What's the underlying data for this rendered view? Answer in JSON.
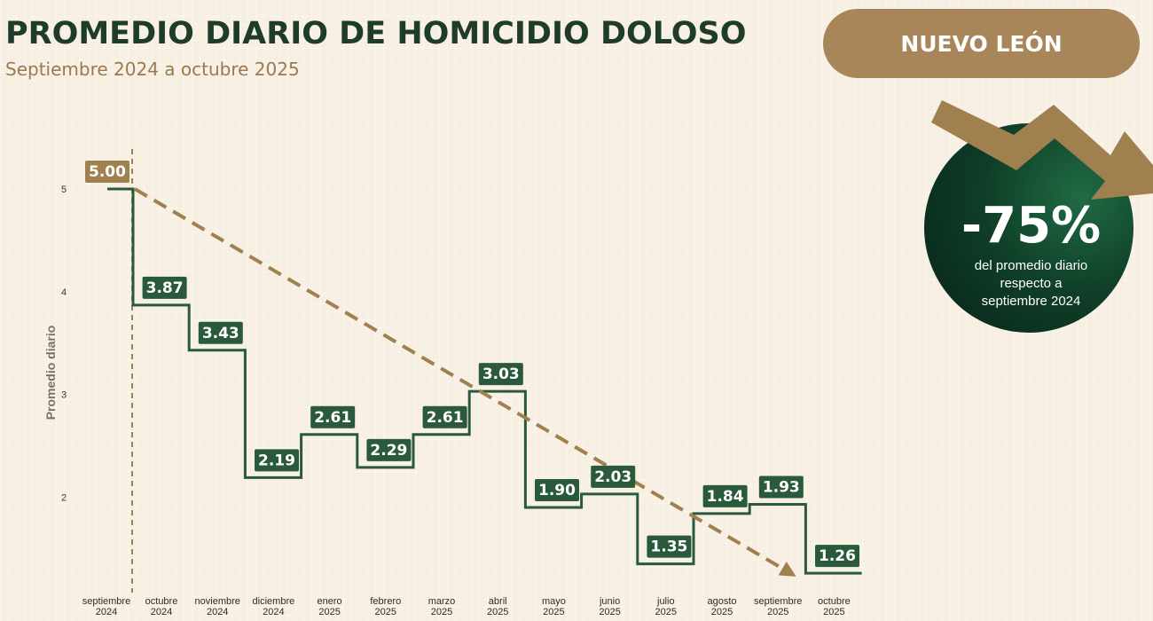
{
  "header": {
    "title": "PROMEDIO DIARIO DE HOMICIDIO DOLOSO",
    "subtitle": "Septiembre 2024 a octubre 2025",
    "region": "NUEVO LEÓN"
  },
  "callout": {
    "value": "-75%",
    "text_line1": "del promedio diario",
    "text_line2": "respecto a",
    "text_line3": "septiembre 2024"
  },
  "colors": {
    "dark_green": "#2a5a3b",
    "gold": "#a0804f",
    "background": "#f7efe2",
    "circle_green": "#0f3e28"
  },
  "chart_data": {
    "type": "line",
    "step": true,
    "categories": [
      [
        "septiembre",
        "2024"
      ],
      [
        "octubre",
        "2024"
      ],
      [
        "noviembre",
        "2024"
      ],
      [
        "diciembre",
        "2024"
      ],
      [
        "enero",
        "2025"
      ],
      [
        "febrero",
        "2025"
      ],
      [
        "marzo",
        "2025"
      ],
      [
        "abril",
        "2025"
      ],
      [
        "mayo",
        "2025"
      ],
      [
        "junio",
        "2025"
      ],
      [
        "julio",
        "2025"
      ],
      [
        "agosto",
        "2025"
      ],
      [
        "septiembre",
        "2025"
      ],
      [
        "octubre",
        "2025"
      ]
    ],
    "values": [
      5.0,
      3.87,
      3.43,
      2.19,
      2.61,
      2.29,
      2.61,
      3.03,
      1.9,
      2.03,
      1.35,
      1.84,
      1.93,
      1.26
    ],
    "value_labels": [
      "5.00",
      "3.87",
      "3.43",
      "2.19",
      "2.61",
      "2.29",
      "2.61",
      "3.03",
      "1.90",
      "2.03",
      "1.35",
      "1.84",
      "1.93",
      "1.26"
    ],
    "ylabel": "Promedio diario",
    "yticks": [
      2,
      3,
      4,
      5
    ],
    "trend": {
      "from": 5.0,
      "to": 1.26,
      "style": "dashed-arrow"
    },
    "grid": false
  }
}
